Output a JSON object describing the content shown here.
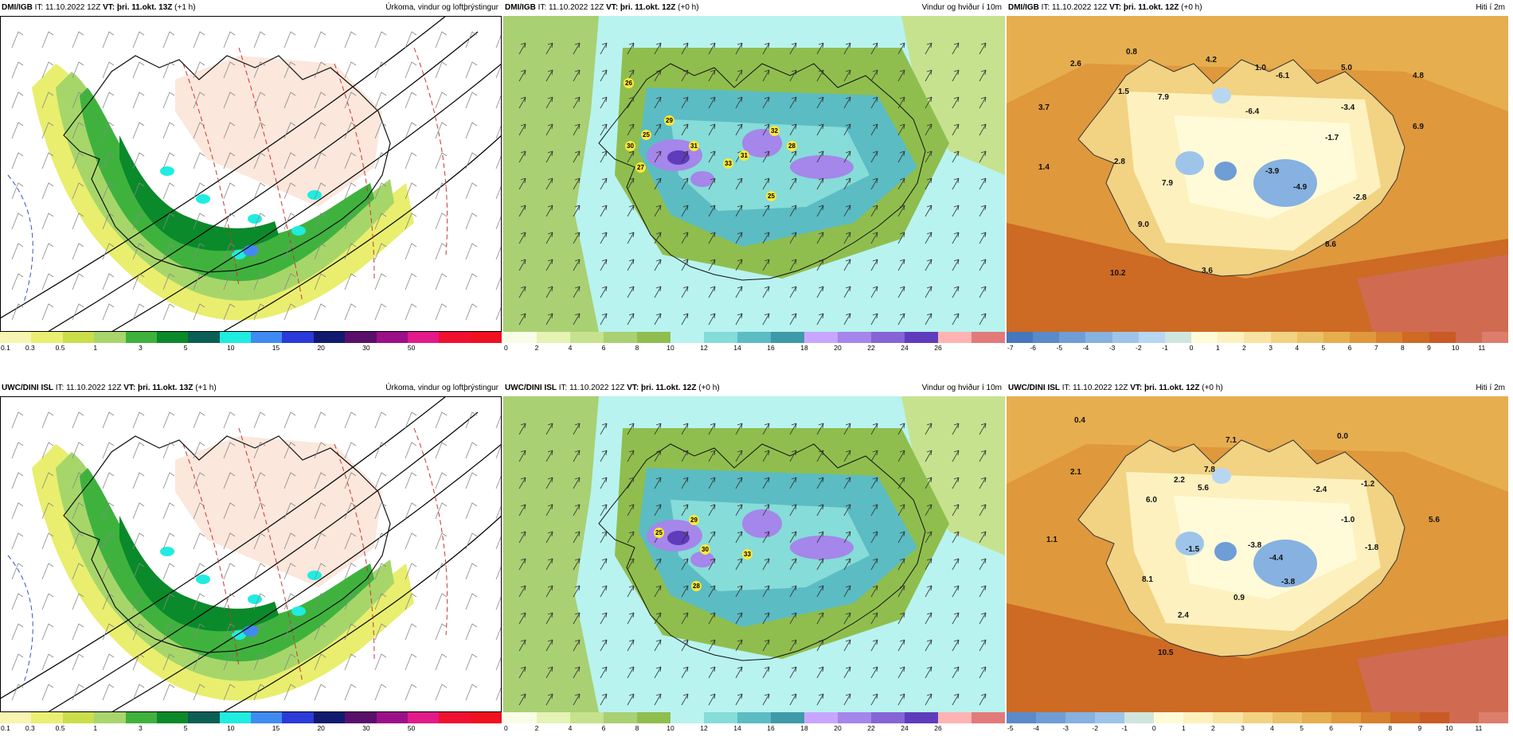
{
  "panels": [
    {
      "model": "DMI/IGB",
      "it": "IT: 11.10.2022 12Z",
      "vt_label": "VT:",
      "vt": "þri. 11.okt. 13Z",
      "lead": "(+1 h)",
      "field": "Úrkoma, vindur og loftþrýstingur",
      "colorbar": [
        "#f7f5b0",
        "#eaef73",
        "#cbde4a",
        "#a8d66c",
        "#3fb23e",
        "#0a8a2a",
        "#0b5f55",
        "#20ece0",
        "#3f8bf2",
        "#2b3ad8",
        "#121a70",
        "#5a0f6b",
        "#9b1088",
        "#e21a8a",
        "#f01030",
        "#f01020"
      ],
      "ticks": [
        "0.1",
        "0.3",
        "0.5",
        "1",
        "3",
        "5",
        "10",
        "15",
        "20",
        "30",
        "50"
      ]
    },
    {
      "model": "DMI/IGB",
      "it": "IT: 11.10.2022 12Z",
      "vt_label": "VT:",
      "vt": "þri. 11.okt. 12Z",
      "lead": "(+0 h)",
      "field": "Vindur og hviður í 10m",
      "colorbar": [
        "#f9fde8",
        "#e5f3b4",
        "#c6e28e",
        "#a9d072",
        "#8fbe4e",
        "#b8f3f0",
        "#86dcd8",
        "#5bbcc3",
        "#3e9aa8",
        "#c8a6ff",
        "#a586ea",
        "#8664d6",
        "#5f3cbc",
        "#ffb3b3",
        "#e37a7a"
      ],
      "ticks": [
        "0",
        "2",
        "4",
        "6",
        "8",
        "10",
        "12",
        "14",
        "16",
        "18",
        "20",
        "22",
        "24",
        "26"
      ]
    },
    {
      "model": "DMI/IGB",
      "it": "IT: 11.10.2022 12Z",
      "vt_label": "VT:",
      "vt": "þri. 11.okt. 12Z",
      "lead": "(+0 h)",
      "field": "Hiti í 2m",
      "colorbar": [
        "#4677bd",
        "#5b8acb",
        "#6f9dd6",
        "#86b1e0",
        "#9ec4ea",
        "#b7d6f2",
        "#cfe6df",
        "#fffbd8",
        "#fdf1bf",
        "#f8e3a2",
        "#f2d283",
        "#ebc067",
        "#e6ae4f",
        "#df983c",
        "#d7802e",
        "#cd6a24",
        "#c95a25",
        "#d06b52",
        "#dd7d6c"
      ],
      "ticks": [
        "-7",
        "-6",
        "-5",
        "-4",
        "-3",
        "-2",
        "-1",
        "0",
        "1",
        "2",
        "3",
        "4",
        "5",
        "6",
        "7",
        "8",
        "9",
        "10",
        "11"
      ],
      "values": [
        "2.6",
        "0.8",
        "4.2",
        "1.0",
        "-6.1",
        "5.0",
        "4.8",
        "1.5",
        "7.9",
        "-6.4",
        "-3.4",
        "3.7",
        "-1.7",
        "6.9",
        "1.4",
        "2.8",
        "-3.9",
        "7.9",
        "-4.9",
        "-2.8",
        "9.0",
        "8.6",
        "10.2",
        "3.6"
      ]
    },
    {
      "model": "UWC/DINI ISL",
      "it": "IT: 11.10.2022 12Z",
      "vt_label": "VT:",
      "vt": "þri. 11.okt. 13Z",
      "lead": "(+1 h)",
      "field": "Úrkoma, vindur og loftþrýstingur",
      "colorbar": [
        "#f7f5b0",
        "#eaef73",
        "#cbde4a",
        "#a8d66c",
        "#3fb23e",
        "#0a8a2a",
        "#0b5f55",
        "#20ece0",
        "#3f8bf2",
        "#2b3ad8",
        "#121a70",
        "#5a0f6b",
        "#9b1088",
        "#e21a8a",
        "#f01030",
        "#f01020"
      ],
      "ticks": [
        "0.1",
        "0.3",
        "0.5",
        "1",
        "3",
        "5",
        "10",
        "15",
        "20",
        "30",
        "50"
      ]
    },
    {
      "model": "UWC/DINI ISL",
      "it": "IT: 11.10.2022 12Z",
      "vt_label": "VT:",
      "vt": "þri. 11.okt. 12Z",
      "lead": "(+0 h)",
      "field": "Vindur og hviður í 10m",
      "colorbar": [
        "#f9fde8",
        "#e5f3b4",
        "#c6e28e",
        "#a9d072",
        "#8fbe4e",
        "#b8f3f0",
        "#86dcd8",
        "#5bbcc3",
        "#3e9aa8",
        "#c8a6ff",
        "#a586ea",
        "#8664d6",
        "#5f3cbc",
        "#ffb3b3",
        "#e37a7a"
      ],
      "ticks": [
        "0",
        "2",
        "4",
        "6",
        "8",
        "10",
        "12",
        "14",
        "16",
        "18",
        "20",
        "22",
        "24",
        "26"
      ]
    },
    {
      "model": "UWC/DINI ISL",
      "it": "IT: 11.10.2022 12Z",
      "vt_label": "VT:",
      "vt": "þri. 11.okt. 12Z",
      "lead": "(+0 h)",
      "field": "Hiti í 2m",
      "colorbar": [
        "#5b8acb",
        "#6f9dd6",
        "#86b1e0",
        "#9ec4ea",
        "#cfe6df",
        "#fffbd8",
        "#fdf1bf",
        "#f8e3a2",
        "#f2d283",
        "#ebc067",
        "#e6ae4f",
        "#df983c",
        "#d7802e",
        "#cd6a24",
        "#c95a25",
        "#d06b52",
        "#dd7d6c"
      ],
      "ticks": [
        "-5",
        "-4",
        "-3",
        "-2",
        "-1",
        "0",
        "1",
        "2",
        "3",
        "4",
        "5",
        "6",
        "7",
        "8",
        "9",
        "10",
        "11"
      ],
      "values": [
        "0.4",
        "7.1",
        "0.0",
        "2.1",
        "7.8",
        "2.2",
        "5.6",
        "-2.4",
        "-1.2",
        "6.0",
        "5.6",
        "-1.0",
        "1.1",
        "-1.5",
        "-3.8",
        "-1.8",
        "-4.4",
        "8.1",
        "-3.8",
        "0.9",
        "2.4",
        "10.5"
      ]
    }
  ],
  "wind_labels_top": [
    "26",
    "30",
    "25",
    "29",
    "31",
    "27",
    "33",
    "31",
    "32",
    "28",
    "25"
  ],
  "wind_labels_bottom": [
    "25",
    "29",
    "30",
    "33",
    "28"
  ]
}
